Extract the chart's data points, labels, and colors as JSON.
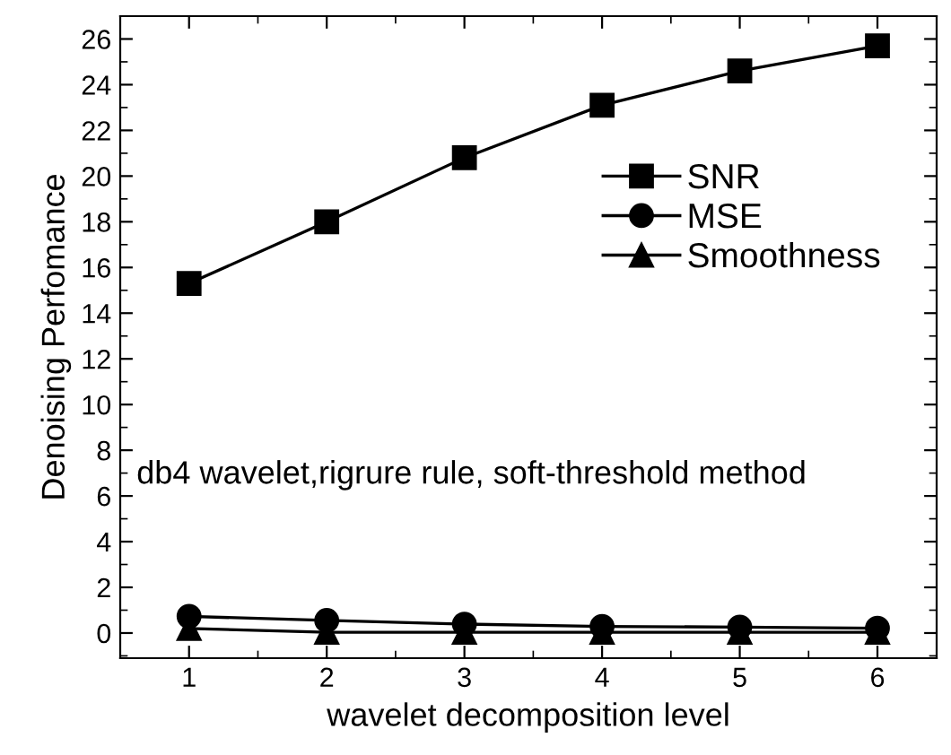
{
  "chart_data": {
    "type": "line",
    "xlabel": "wavelet decomposition level",
    "ylabel": "Denoising Perfomance",
    "x": [
      1,
      2,
      3,
      4,
      5,
      6
    ],
    "series": [
      {
        "name": "SNR",
        "color": "#000000",
        "marker": "square",
        "values": [
          15.3,
          18.0,
          20.8,
          23.1,
          24.6,
          25.7
        ]
      },
      {
        "name": "MSE",
        "color": "#000000",
        "marker": "circle",
        "values": [
          0.73,
          0.55,
          0.39,
          0.29,
          0.26,
          0.21
        ]
      },
      {
        "name": "Smoothness",
        "color": "#000000",
        "marker": "triangle",
        "values": [
          0.2,
          0.03,
          0.03,
          0.03,
          0.03,
          0.03
        ]
      }
    ],
    "xlim": [
      0.5,
      6.43
    ],
    "xticks": [
      1,
      2,
      3,
      4,
      5,
      6
    ],
    "ylim": [
      -1.1,
      27
    ],
    "yticks": [
      0,
      2,
      4,
      6,
      8,
      10,
      12,
      14,
      16,
      18,
      20,
      22,
      24,
      26
    ],
    "grid": false,
    "legend": "upper right",
    "line_style": "solid",
    "annotations": [
      "db4 wavelet,rigrure rule, soft-threshold method"
    ]
  }
}
